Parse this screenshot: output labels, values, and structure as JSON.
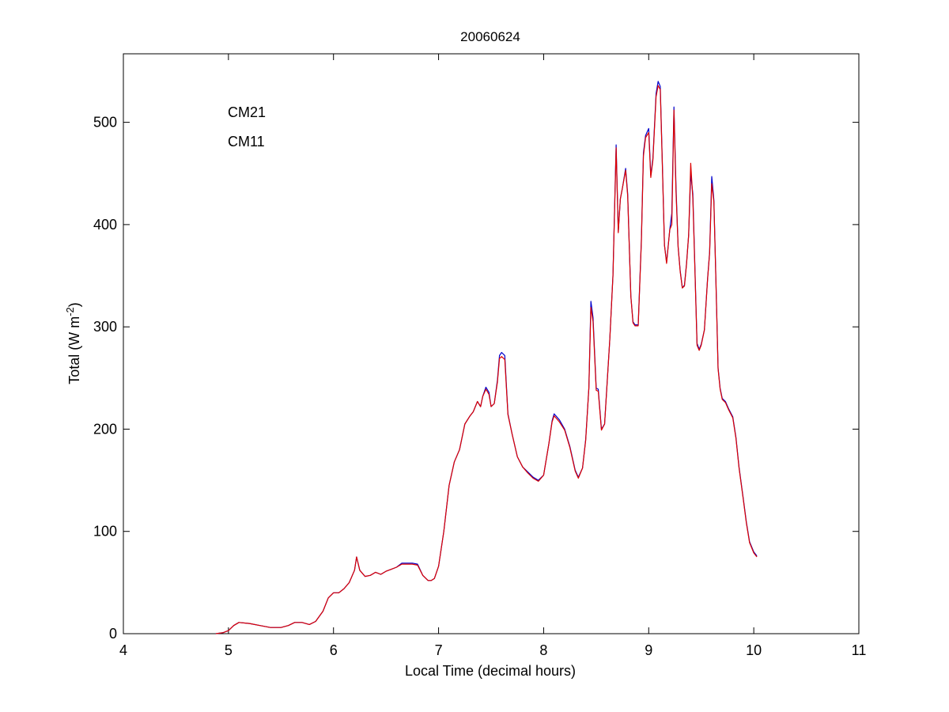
{
  "chart_data": {
    "type": "line",
    "title": "20060624",
    "xlabel": "Local Time (decimal hours)",
    "ylabel": {
      "prefix": "Total (W m",
      "superscript": "-2",
      "suffix": ")"
    },
    "xlim": [
      4,
      11
    ],
    "ylim": [
      0,
      567
    ],
    "xticks": [
      4,
      5,
      6,
      7,
      8,
      9,
      10,
      11
    ],
    "yticks": [
      0,
      100,
      200,
      300,
      400,
      500
    ],
    "grid": false,
    "legend": {
      "placement": "top-left",
      "entries": [
        "CM21",
        "CM11"
      ]
    },
    "x": [
      4.88,
      4.95,
      5.0,
      5.05,
      5.1,
      5.2,
      5.3,
      5.4,
      5.5,
      5.57,
      5.63,
      5.7,
      5.77,
      5.83,
      5.9,
      5.95,
      6.0,
      6.05,
      6.1,
      6.15,
      6.2,
      6.22,
      6.25,
      6.3,
      6.35,
      6.4,
      6.45,
      6.5,
      6.55,
      6.6,
      6.65,
      6.7,
      6.75,
      6.8,
      6.85,
      6.9,
      6.93,
      6.96,
      7.0,
      7.05,
      7.1,
      7.15,
      7.2,
      7.25,
      7.3,
      7.33,
      7.37,
      7.4,
      7.42,
      7.45,
      7.48,
      7.5,
      7.53,
      7.56,
      7.58,
      7.6,
      7.63,
      7.66,
      7.7,
      7.75,
      7.8,
      7.85,
      7.9,
      7.95,
      8.0,
      8.05,
      8.08,
      8.1,
      8.15,
      8.2,
      8.25,
      8.3,
      8.33,
      8.37,
      8.4,
      8.43,
      8.45,
      8.47,
      8.5,
      8.52,
      8.55,
      8.58,
      8.6,
      8.63,
      8.66,
      8.69,
      8.71,
      8.73,
      8.75,
      8.78,
      8.8,
      8.83,
      8.85,
      8.87,
      8.9,
      8.93,
      8.95,
      8.97,
      9.0,
      9.02,
      9.04,
      9.07,
      9.09,
      9.11,
      9.13,
      9.15,
      9.17,
      9.2,
      9.22,
      9.24,
      9.26,
      9.28,
      9.3,
      9.32,
      9.34,
      9.36,
      9.38,
      9.4,
      9.42,
      9.44,
      9.46,
      9.48,
      9.5,
      9.53,
      9.56,
      9.58,
      9.6,
      9.62,
      9.64,
      9.66,
      9.68,
      9.7,
      9.73,
      9.76,
      9.8,
      9.83,
      9.86,
      9.9,
      9.93,
      9.96,
      10.0,
      10.03
    ],
    "series": [
      {
        "name": "CM21",
        "color": "#0000cc",
        "values": [
          0,
          1,
          3,
          8,
          11,
          10,
          8,
          6,
          6,
          8,
          11,
          11,
          9,
          12,
          22,
          35,
          40,
          40,
          44,
          50,
          62,
          75,
          62,
          56,
          57,
          60,
          58,
          61,
          63,
          65,
          69,
          69,
          69,
          68,
          57,
          52,
          52,
          54,
          66,
          100,
          145,
          168,
          180,
          205,
          213,
          217,
          227,
          222,
          232,
          241,
          236,
          222,
          225,
          248,
          272,
          275,
          272,
          215,
          195,
          173,
          163,
          158,
          153,
          150,
          155,
          186,
          208,
          215,
          209,
          200,
          183,
          160,
          153,
          162,
          190,
          240,
          325,
          309,
          240,
          239,
          200,
          205,
          238,
          288,
          351,
          478,
          393,
          425,
          436,
          455,
          430,
          330,
          305,
          302,
          302,
          385,
          470,
          487,
          494,
          448,
          465,
          528,
          540,
          535,
          458,
          380,
          363,
          395,
          411,
          515,
          437,
          378,
          355,
          338,
          341,
          362,
          390,
          450,
          430,
          358,
          284,
          278,
          283,
          297,
          347,
          373,
          447,
          424,
          345,
          260,
          240,
          230,
          227,
          220,
          212,
          192,
          163,
          132,
          109,
          90,
          80,
          76
        ]
      },
      {
        "name": "CM11",
        "color": "#dd0000",
        "values": [
          0,
          1,
          3,
          8,
          11,
          10,
          8,
          6,
          6,
          8,
          11,
          11,
          9,
          12,
          22,
          35,
          40,
          40,
          44,
          50,
          62,
          75,
          62,
          56,
          57,
          60,
          58,
          61,
          63,
          65,
          68,
          68,
          68,
          67,
          57,
          52,
          52,
          54,
          66,
          100,
          145,
          168,
          180,
          205,
          213,
          217,
          227,
          222,
          232,
          239,
          234,
          222,
          225,
          246,
          269,
          271,
          268,
          214,
          195,
          173,
          163,
          157,
          152,
          149,
          155,
          186,
          207,
          213,
          207,
          199,
          182,
          159,
          152,
          162,
          189,
          240,
          319,
          305,
          238,
          237,
          199,
          205,
          237,
          288,
          350,
          475,
          392,
          425,
          436,
          453,
          428,
          330,
          304,
          301,
          301,
          383,
          467,
          485,
          490,
          446,
          463,
          525,
          536,
          532,
          456,
          380,
          362,
          395,
          400,
          512,
          432,
          378,
          354,
          338,
          340,
          361,
          390,
          460,
          425,
          356,
          282,
          277,
          282,
          297,
          346,
          372,
          440,
          422,
          344,
          259,
          239,
          229,
          226,
          219,
          211,
          191,
          162,
          131,
          108,
          89,
          79,
          75
        ]
      }
    ]
  }
}
